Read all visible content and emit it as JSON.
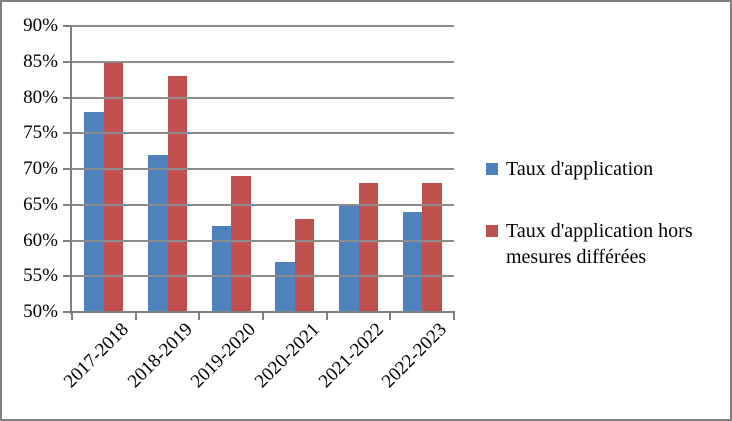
{
  "chart_data": {
    "type": "bar",
    "title": "",
    "xlabel": "",
    "ylabel": "",
    "categories": [
      "2017-2018",
      "2018-2019",
      "2019-2020",
      "2020-2021",
      "2021-2022",
      "2022-2023"
    ],
    "series": [
      {
        "name": "Taux d'application",
        "color": "#4F81BD",
        "values": [
          78,
          72,
          62,
          57,
          65,
          64
        ]
      },
      {
        "name": "Taux d'application hors mesures différées",
        "color": "#C0504D",
        "values": [
          85,
          83,
          69,
          63,
          68,
          68
        ]
      }
    ],
    "y_axis": {
      "min": 50,
      "max": 90,
      "step": 5,
      "unit": "%"
    },
    "y_tick_labels": [
      "90%",
      "85%",
      "80%",
      "75%",
      "70%",
      "65%",
      "60%",
      "55%",
      "50%"
    ],
    "grid": true,
    "legend_position": "right"
  },
  "colors": {
    "series1": "#4F81BD",
    "series2": "#C0504D",
    "gridline": "#8c8c8c",
    "axis": "#808080",
    "border": "#808080",
    "text": "#000000"
  }
}
